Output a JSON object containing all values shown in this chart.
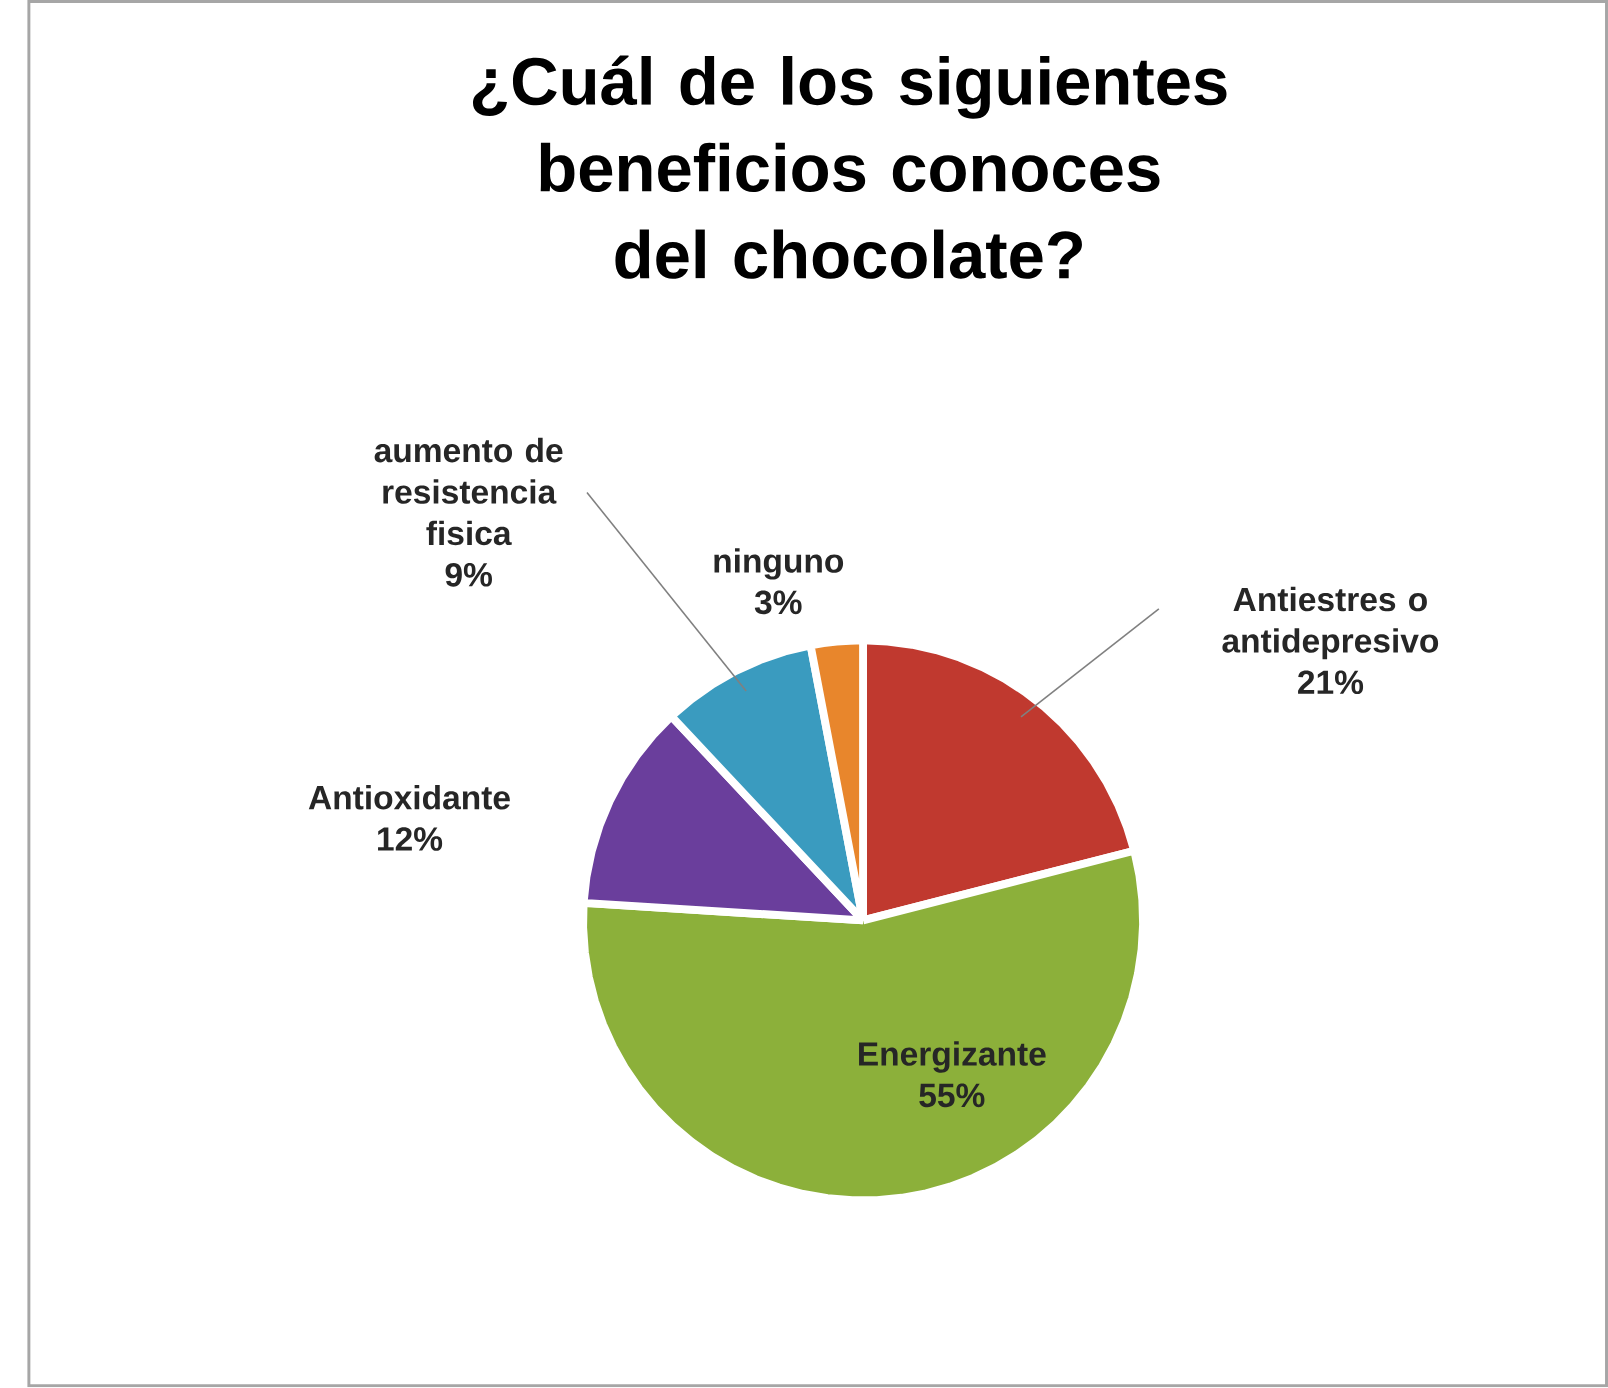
{
  "chart_data": {
    "type": "pie",
    "title": "¿Cuál de los siguientes beneficios conoces del chocolate?",
    "categories": [
      "Antiestres o antidepresivo",
      "Energizante",
      "Antioxidante",
      "aumento de resistencia fisica",
      "ninguno"
    ],
    "values": [
      21,
      55,
      12,
      9,
      3
    ],
    "value_labels": [
      "21%",
      "55%",
      "12%",
      "9%",
      "3%"
    ],
    "colors": [
      "#c0392f",
      "#8cb03a",
      "#6a3e9c",
      "#3a9bbf",
      "#e8862c"
    ]
  }
}
